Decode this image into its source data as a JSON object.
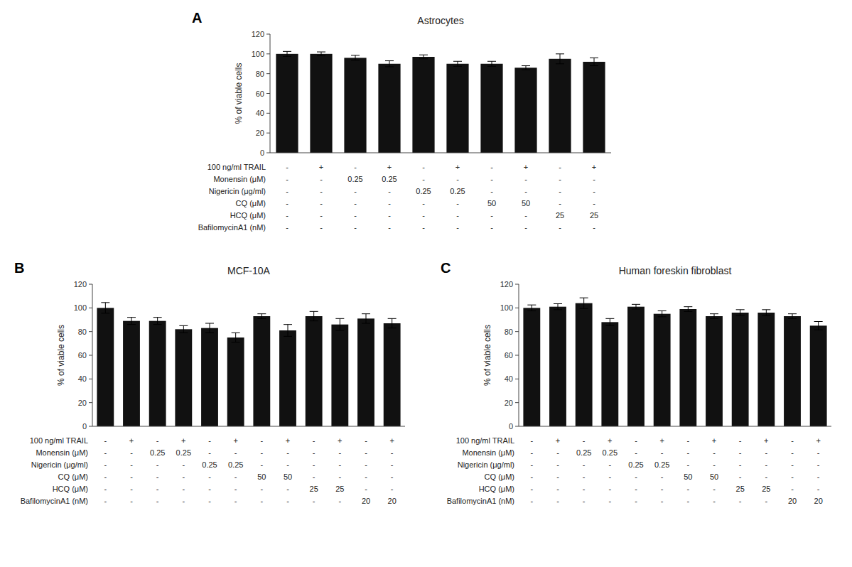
{
  "chart_data": [
    {
      "type": "bar",
      "title": "Astrocytes",
      "panel_label": "A",
      "ylabel": "% of viable cells",
      "color": "#111111",
      "tick_labels": "y",
      "values": [
        100,
        100,
        96,
        90,
        97,
        90,
        90,
        86,
        95,
        92
      ],
      "errors": [
        2.5,
        2.0,
        2.5,
        3.0,
        2.0,
        2.5,
        2.5,
        2.0,
        5.0,
        4.0
      ],
      "ylim": [
        0,
        120
      ],
      "yticks": [
        0,
        20,
        40,
        60,
        80,
        100,
        120
      ],
      "table_rows": [
        {
          "label": "100 ng/ml TRAIL",
          "cells": [
            "-",
            "+",
            "-",
            "+",
            "-",
            "+",
            "-",
            "+",
            "-",
            "+"
          ]
        },
        {
          "label": "Monensin (μM)",
          "cells": [
            "-",
            "-",
            "0.25",
            "0.25",
            "-",
            "-",
            "-",
            "-",
            "-",
            "-"
          ]
        },
        {
          "label": "Nigericin (μg/ml)",
          "cells": [
            "-",
            "-",
            "-",
            "-",
            "0.25",
            "0.25",
            "-",
            "-",
            "-",
            "-"
          ]
        },
        {
          "label": "CQ (μM)",
          "cells": [
            "-",
            "-",
            "-",
            "-",
            "-",
            "-",
            "50",
            "50",
            "-",
            "-"
          ]
        },
        {
          "label": "HCQ (μM)",
          "cells": [
            "-",
            "-",
            "-",
            "-",
            "-",
            "-",
            "-",
            "-",
            "25",
            "25"
          ]
        },
        {
          "label": "BafilomycinA1 (nM)",
          "cells": [
            "-",
            "-",
            "-",
            "-",
            "-",
            "-",
            "-",
            "-",
            "-",
            "-"
          ]
        }
      ]
    },
    {
      "type": "bar",
      "title": "MCF-10A",
      "panel_label": "B",
      "ylabel": "% of viable cells",
      "color": "#111111",
      "tick_labels": "y",
      "values": [
        100,
        89,
        89,
        82,
        83,
        75,
        93,
        81,
        93,
        86,
        91,
        87
      ],
      "errors": [
        4.5,
        3.0,
        3.0,
        3.0,
        4.0,
        4.0,
        2.0,
        5.0,
        4.0,
        5.0,
        4.0,
        4.0
      ],
      "ylim": [
        0,
        120
      ],
      "yticks": [
        0,
        20,
        40,
        60,
        80,
        100,
        120
      ],
      "table_rows": [
        {
          "label": "100 ng/ml TRAIL",
          "cells": [
            "-",
            "+",
            "-",
            "+",
            "-",
            "+",
            "-",
            "+",
            "-",
            "+",
            "-",
            "+"
          ]
        },
        {
          "label": "Monensin (μM)",
          "cells": [
            "-",
            "-",
            "0.25",
            "0.25",
            "-",
            "-",
            "-",
            "-",
            "-",
            "-",
            "-",
            "-"
          ]
        },
        {
          "label": "Nigericin (μg/ml)",
          "cells": [
            "-",
            "-",
            "-",
            "-",
            "0.25",
            "0.25",
            "-",
            "-",
            "-",
            "-",
            "-",
            "-"
          ]
        },
        {
          "label": "CQ (μM)",
          "cells": [
            "-",
            "-",
            "-",
            "-",
            "-",
            "-",
            "50",
            "50",
            "-",
            "-",
            "-",
            "-"
          ]
        },
        {
          "label": "HCQ (μM)",
          "cells": [
            "-",
            "-",
            "-",
            "-",
            "-",
            "-",
            "-",
            "-",
            "25",
            "25",
            "-",
            "-"
          ]
        },
        {
          "label": "BafilomycinA1 (nM)",
          "cells": [
            "-",
            "-",
            "-",
            "-",
            "-",
            "-",
            "-",
            "-",
            "-",
            "-",
            "20",
            "20"
          ]
        }
      ]
    },
    {
      "type": "bar",
      "title": "Human foreskin fibroblast",
      "panel_label": "C",
      "ylabel": "% of viable cells",
      "color": "#111111",
      "tick_labels": "y",
      "values": [
        100,
        101,
        104,
        88,
        101,
        95,
        99,
        93,
        96,
        96,
        93,
        85
      ],
      "errors": [
        2.5,
        2.5,
        4.5,
        3.0,
        2.0,
        2.5,
        2.0,
        2.0,
        2.5,
        2.5,
        2.0,
        3.5
      ],
      "ylim": [
        0,
        120
      ],
      "yticks": [
        0,
        20,
        40,
        60,
        80,
        100,
        120
      ],
      "table_rows": [
        {
          "label": "100 ng/ml TRAIL",
          "cells": [
            "-",
            "+",
            "-",
            "+",
            "-",
            "+",
            "-",
            "+",
            "-",
            "+",
            "-",
            "+"
          ]
        },
        {
          "label": "Monensin (μM)",
          "cells": [
            "-",
            "-",
            "0.25",
            "0.25",
            "-",
            "-",
            "-",
            "-",
            "-",
            "-",
            "-",
            "-"
          ]
        },
        {
          "label": "Nigericin (μg/ml)",
          "cells": [
            "-",
            "-",
            "-",
            "-",
            "0.25",
            "0.25",
            "-",
            "-",
            "-",
            "-",
            "-",
            "-"
          ]
        },
        {
          "label": "CQ (μM)",
          "cells": [
            "-",
            "-",
            "-",
            "-",
            "-",
            "-",
            "50",
            "50",
            "-",
            "-",
            "-",
            "-"
          ]
        },
        {
          "label": "HCQ (μM)",
          "cells": [
            "-",
            "-",
            "-",
            "-",
            "-",
            "-",
            "-",
            "-",
            "25",
            "25",
            "-",
            "-"
          ]
        },
        {
          "label": "BafilomycinA1 (nM)",
          "cells": [
            "-",
            "-",
            "-",
            "-",
            "-",
            "-",
            "-",
            "-",
            "-",
            "-",
            "20",
            "20"
          ]
        }
      ]
    }
  ]
}
